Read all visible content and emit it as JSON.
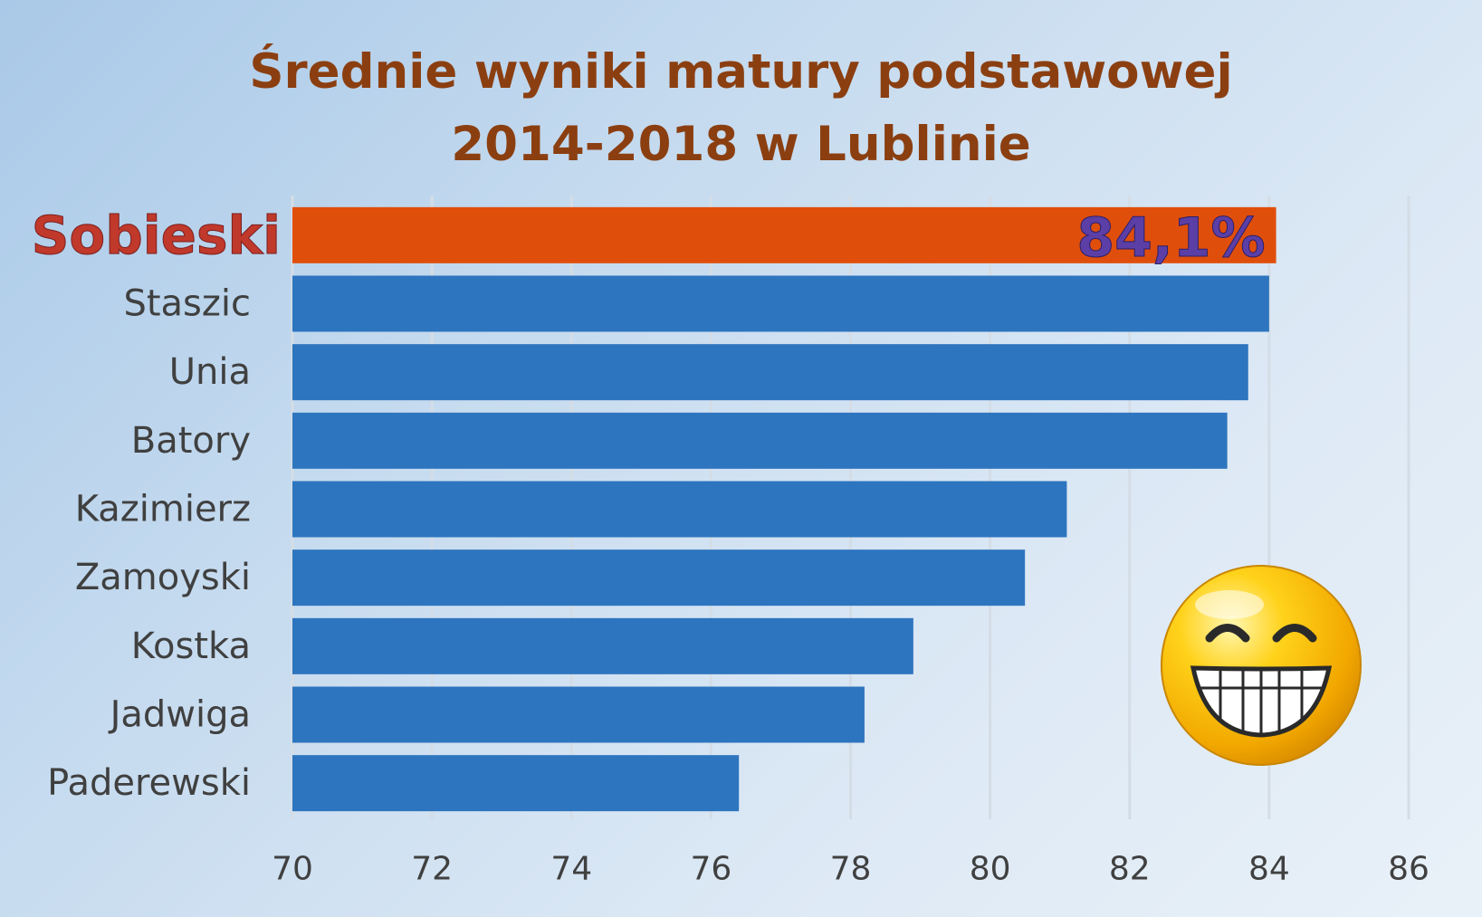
{
  "title_line1": "Średnie wyniki matury podstawowej",
  "title_line2": "2014-2018 w Lublinie",
  "chart_data": {
    "type": "bar",
    "orientation": "horizontal",
    "categories": [
      "Sobieski",
      "Staszic",
      "Unia",
      "Batory",
      "Kazimierz",
      "Zamoyski",
      "Kostka",
      "Jadwiga",
      "Paderewski"
    ],
    "values": [
      84.1,
      84.0,
      83.7,
      83.4,
      81.1,
      80.5,
      78.9,
      78.2,
      76.4
    ],
    "highlight": "Sobieski",
    "highlight_label": "84,1%",
    "xlim": [
      70,
      86
    ],
    "xticks": [
      "70",
      "72",
      "74",
      "76",
      "78",
      "80",
      "82",
      "84",
      "86"
    ],
    "grid": true,
    "colors": {
      "bar": "#2e75bf",
      "highlight_bar": "#e04e0c",
      "gridline": "#d4dde6"
    }
  },
  "decoration": {
    "icon": "laughing-smiley-icon"
  }
}
